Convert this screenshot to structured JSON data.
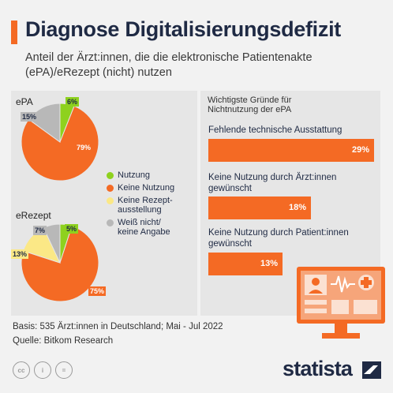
{
  "title": "Diagnose Digitalisierungsdefizit",
  "subtitle": "Anteil der Ärzt:innen, die die elektronische Patientenakte (ePA)/eRezept (nicht) nutzen",
  "colors": {
    "accent": "#f46a24",
    "nutzung": "#8ed11e",
    "keine_nutzung": "#f46a24",
    "keine_ausstellung": "#fbe886",
    "weiss_nicht": "#b8b8b8",
    "navy": "#1f2a44"
  },
  "chart_data": [
    {
      "type": "pie",
      "title": "ePA",
      "slices": [
        {
          "label": "Nutzung",
          "value": 6,
          "display": "6%",
          "color": "#8ed11e"
        },
        {
          "label": "Keine Nutzung",
          "value": 79,
          "display": "79%",
          "color": "#f46a24"
        },
        {
          "label": "Weiß nicht/ keine Angabe",
          "value": 15,
          "display": "15%",
          "color": "#b8b8b8"
        }
      ]
    },
    {
      "type": "pie",
      "title": "eRezept",
      "slices": [
        {
          "label": "Nutzung",
          "value": 5,
          "display": "5%",
          "color": "#8ed11e"
        },
        {
          "label": "Keine Nutzung",
          "value": 75,
          "display": "75%",
          "color": "#f46a24"
        },
        {
          "label": "Keine Rezept-ausstellung",
          "value": 13,
          "display": "13%",
          "color": "#fbe886"
        },
        {
          "label": "Weiß nicht/ keine Angabe",
          "value": 7,
          "display": "7%",
          "color": "#b8b8b8"
        }
      ]
    },
    {
      "type": "bar",
      "title": "Wichtigste Gründe für Nichtnutzung der ePA",
      "categories": [
        "Fehlende technische Ausstattung",
        "Keine Nutzung durch Ärzt:innen gewünscht",
        "Keine Nutzung durch Patient:innen gewünscht"
      ],
      "values": [
        29,
        18,
        13
      ],
      "display": [
        "29%",
        "18%",
        "13%"
      ],
      "max": 29
    }
  ],
  "legend": [
    {
      "label": "Nutzung",
      "color": "#8ed11e"
    },
    {
      "label": "Keine Nutzung",
      "color": "#f46a24"
    },
    {
      "label": "Keine Rezept-ausstellung",
      "color": "#fbe886"
    },
    {
      "label": "Weiß nicht/ keine Angabe",
      "color": "#b8b8b8"
    }
  ],
  "reasons_title": "Wichtigste Gründe für Nichtnutzung der ePA",
  "reasons": [
    {
      "label": "Fehlende technische Ausstattung",
      "display": "29%"
    },
    {
      "label": "Keine Nutzung durch Ärzt:innen gewünscht",
      "display": "18%"
    },
    {
      "label": "Keine Nutzung durch Patient:innen gewünscht",
      "display": "13%"
    }
  ],
  "footer": {
    "basis": "Basis: 535 Ärzt:innen in Deutschland; Mai - Jul 2022",
    "source": "Quelle: Bitkom Research"
  },
  "license_icons": [
    "cc",
    "i",
    "="
  ],
  "brand": "statista"
}
